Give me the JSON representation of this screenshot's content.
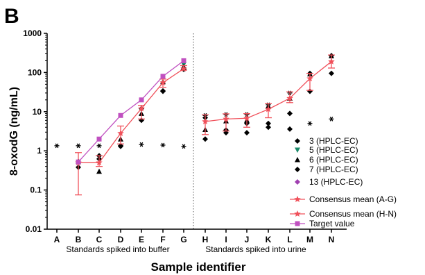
{
  "figure": {
    "panel_label": "B"
  },
  "chart_data": {
    "type": "scatter",
    "yscale": "log",
    "ylim": [
      0.01,
      1000
    ],
    "ylabel": "8-oxodG (ng/mL)",
    "xlabel": "Sample identifier",
    "y_ticks": [
      "0.01",
      "0.1",
      "1",
      "10",
      "100",
      "1000"
    ],
    "categories": [
      "A",
      "B",
      "C",
      "D",
      "E",
      "F",
      "G",
      "H",
      "I",
      "J",
      "K",
      "L",
      "M",
      "N"
    ],
    "group_labels": [
      "Standards spiked into buffer",
      "Standards spiked into urine"
    ],
    "colors": {
      "consensus": "#f0505a",
      "target": "#c050c0",
      "lab5": "#1a8a6a",
      "lab13": "#a040b0",
      "black": "#000000"
    },
    "series": [
      {
        "name": "3 (HPLC-EC)",
        "marker": "diamond",
        "color": "#000000",
        "points": [
          [
            "B",
            0.38
          ],
          [
            "C",
            0.62
          ],
          [
            "D",
            1.35
          ],
          [
            "E",
            6
          ],
          [
            "F",
            33
          ],
          [
            "G",
            120
          ],
          [
            "H",
            2.0
          ],
          [
            "I",
            2.9
          ],
          [
            "J",
            2.9
          ],
          [
            "K",
            4
          ],
          [
            "L",
            3.6
          ],
          [
            "M",
            33
          ],
          [
            "N",
            95
          ]
        ]
      },
      {
        "name": "5 (HPLC-EC)",
        "marker": "triangle-down",
        "color": "#1a8a6a",
        "points": [
          [
            "G",
            160
          ]
        ]
      },
      {
        "name": "6 (HPLC-EC)",
        "marker": "triangle-up",
        "color": "#000000",
        "points": [
          [
            "B",
            0.55
          ],
          [
            "C",
            0.3
          ],
          [
            "D",
            2.0
          ],
          [
            "E",
            9
          ],
          [
            "F",
            58
          ],
          [
            "G",
            140
          ],
          [
            "H",
            3.5
          ],
          [
            "I",
            5.8
          ],
          [
            "J",
            6.0
          ],
          [
            "K",
            14
          ],
          [
            "L",
            22
          ],
          [
            "M",
            92
          ],
          [
            "N",
            265
          ]
        ]
      },
      {
        "name": "7 (HPLC-EC)",
        "marker": "diamond",
        "color": "#000000",
        "points": [
          [
            "C",
            0.75
          ],
          [
            "D",
            1.3
          ],
          [
            "E",
            12
          ],
          [
            "F",
            34
          ],
          [
            "G",
            130
          ],
          [
            "H",
            7.0
          ],
          [
            "I",
            3.4
          ],
          [
            "J",
            5.0
          ],
          [
            "K",
            5
          ],
          [
            "L",
            9.0
          ],
          [
            "M",
            95
          ],
          [
            "N",
            270
          ]
        ]
      },
      {
        "name": "13 (HPLC-EC)",
        "marker": "diamond",
        "color": "#a040b0",
        "points": []
      },
      {
        "name": "",
        "marker": "asterisk",
        "color": "#000000",
        "points": [
          [
            "A",
            1.35
          ],
          [
            "B",
            1.35
          ],
          [
            "C",
            1.35
          ],
          [
            "D",
            1.35
          ],
          [
            "E",
            1.45
          ],
          [
            "F",
            1.4
          ],
          [
            "G",
            1.3
          ],
          [
            "H",
            8.0
          ],
          [
            "I",
            8.5
          ],
          [
            "J",
            8.5
          ],
          [
            "K",
            15
          ],
          [
            "L",
            30
          ],
          [
            "M",
            5.0
          ],
          [
            "N",
            6.5
          ]
        ]
      },
      {
        "name": "Consensus mean (A-G)",
        "marker": "star",
        "color": "#f0505a",
        "line": true,
        "points": [
          [
            "B",
            0.5
          ],
          [
            "C",
            0.5
          ],
          [
            "D",
            2.8
          ],
          [
            "E",
            12
          ],
          [
            "F",
            55
          ],
          [
            "G",
            125
          ]
        ],
        "error_low": [
          0.075,
          0.4,
          1.5,
          6.5,
          42,
          115
        ],
        "error_high": [
          0.9,
          0.75,
          4.3,
          14.5,
          68,
          150
        ]
      },
      {
        "name": "Consensus mean (H-N)",
        "marker": "star",
        "color": "#f0505a",
        "line": true,
        "points": [
          [
            "H",
            5.6
          ],
          [
            "I",
            6.5
          ],
          [
            "J",
            6.8
          ],
          [
            "K",
            11.5
          ],
          [
            "L",
            22
          ],
          [
            "M",
            70
          ],
          [
            "N",
            190
          ]
        ],
        "error_low": [
          2.6,
          3.2,
          4.0,
          7.0,
          17,
          35,
          130
        ],
        "error_high": [
          8.3,
          8.8,
          8.9,
          16,
          32,
          95,
          280
        ]
      },
      {
        "name": "Target value",
        "marker": "square",
        "color": "#c050c0",
        "line": true,
        "points": [
          [
            "B",
            0.52
          ],
          [
            "C",
            2.0
          ],
          [
            "D",
            8.0
          ],
          [
            "E",
            20
          ],
          [
            "F",
            80
          ],
          [
            "G",
            200
          ]
        ]
      }
    ]
  }
}
